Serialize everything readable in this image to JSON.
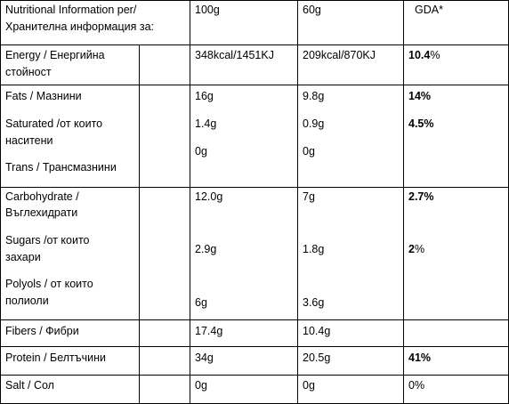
{
  "header": {
    "label_line1": "Nutritional Information per/",
    "label_line2": "Хранителна информация за:",
    "col_100g": "100g",
    "col_60g": "60g",
    "col_gda": "GDA*"
  },
  "rows": {
    "energy": {
      "label_line1": "Energy / Енергийна",
      "label_line2": "стойност",
      "v100": "348kcal/1451KJ",
      "v60": "209kcal/870KJ",
      "gda_num": "10.4",
      "gda_pct": "%"
    },
    "fats": {
      "label": "Fats / Мазнини",
      "v100": "16g",
      "v60": "9.8g",
      "gda_num": "14",
      "gda_pct": "%"
    },
    "saturated": {
      "label_line1": "Saturated /от които",
      "label_line2": "наситени",
      "v100": "1.4g",
      "v60": "0.9g",
      "gda_num": "4.5",
      "gda_pct": "%"
    },
    "trans": {
      "label": "Trans / Трансмазнини",
      "v100": "0g",
      "v60": "0g"
    },
    "carbohydrate": {
      "label_line1": "Carbohydrate /",
      "label_line2": "Въглехидрати",
      "v100": "12.0g",
      "v60": "7g",
      "gda_num": "2.7",
      "gda_pct": "%"
    },
    "sugars": {
      "label_line1": "Sugars /от  които",
      "label_line2": "захари",
      "v100": "2.9g",
      "v60": "1.8g",
      "gda_num": "2",
      "gda_pct": "%"
    },
    "polyols": {
      "label_line1": "Polyols / от които",
      "label_line2": "полиоли",
      "v100": "6g",
      "v60": "3.6g"
    },
    "fibers": {
      "label": "Fibers / Фибри",
      "v100": "17.4g",
      "v60": "10.4g"
    },
    "protein": {
      "label": "Protein / Белтъчини",
      "v100": "34g",
      "v60": "20.5g",
      "gda_num": "41",
      "gda_pct": "%"
    },
    "salt": {
      "label": "Salt / Сол",
      "v100": "0g",
      "v60": "0g",
      "gda": "0%"
    }
  }
}
